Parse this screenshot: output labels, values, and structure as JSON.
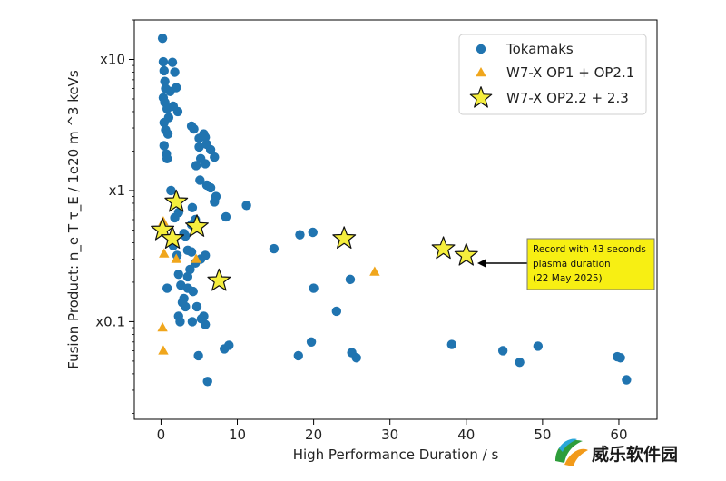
{
  "chart_data": {
    "type": "scatter",
    "title": "",
    "xlabel": "High Performance Duration / s",
    "ylabel": "Fusion Product:  n_e T τ_E /  1e20 m ^3 keVs",
    "xlim": [
      -3.5,
      65
    ],
    "ylim": [
      0.018,
      20
    ],
    "yscale": "log",
    "grid": false,
    "legend_position": "top-right",
    "x_ticks": [
      0,
      10,
      20,
      30,
      40,
      50,
      60
    ],
    "y_ticks": [
      {
        "value": 10,
        "label": "x10"
      },
      {
        "value": 1,
        "label": "x1"
      },
      {
        "value": 0.1,
        "label": "x0.1"
      }
    ],
    "series": [
      {
        "name": "Tokamaks",
        "marker": "circle",
        "color": "#2074b0",
        "points": [
          [
            0.2,
            14.5
          ],
          [
            0.3,
            9.6
          ],
          [
            0.4,
            8.2
          ],
          [
            0.5,
            6.8
          ],
          [
            0.6,
            6.0
          ],
          [
            0.3,
            5.1
          ],
          [
            0.5,
            4.7
          ],
          [
            0.8,
            4.2
          ],
          [
            1.0,
            3.6
          ],
          [
            0.4,
            3.3
          ],
          [
            0.6,
            2.9
          ],
          [
            0.9,
            2.7
          ],
          [
            1.5,
            9.5
          ],
          [
            1.8,
            8.0
          ],
          [
            2.0,
            6.1
          ],
          [
            1.2,
            5.7
          ],
          [
            1.6,
            4.4
          ],
          [
            2.2,
            4.0
          ],
          [
            0.4,
            2.2
          ],
          [
            0.7,
            1.9
          ],
          [
            0.8,
            1.75
          ],
          [
            1.3,
            1.0
          ],
          [
            1.8,
            0.62
          ],
          [
            2.3,
            0.68
          ],
          [
            1.6,
            0.38
          ],
          [
            2.1,
            0.32
          ],
          [
            0.8,
            0.18
          ],
          [
            2.3,
            0.23
          ],
          [
            2.6,
            0.19
          ],
          [
            3.0,
            0.15
          ],
          [
            3.5,
            0.22
          ],
          [
            2.3,
            0.11
          ],
          [
            2.5,
            0.1
          ],
          [
            2.8,
            0.14
          ],
          [
            3.2,
            0.13
          ],
          [
            4.0,
            3.1
          ],
          [
            4.3,
            2.95
          ],
          [
            5.0,
            2.5
          ],
          [
            5.6,
            2.7
          ],
          [
            5.8,
            2.55
          ],
          [
            6.0,
            2.25
          ],
          [
            5.0,
            2.15
          ],
          [
            4.6,
            1.55
          ],
          [
            5.2,
            1.75
          ],
          [
            5.8,
            1.6
          ],
          [
            6.5,
            2.05
          ],
          [
            7.0,
            1.8
          ],
          [
            5.1,
            1.2
          ],
          [
            6.0,
            1.1
          ],
          [
            6.5,
            1.05
          ],
          [
            7.2,
            0.9
          ],
          [
            7.0,
            0.82
          ],
          [
            4.1,
            0.74
          ],
          [
            8.5,
            0.63
          ],
          [
            11.2,
            0.77
          ],
          [
            4.0,
            0.55
          ],
          [
            4.5,
            0.6
          ],
          [
            5.2,
            0.3
          ],
          [
            5.8,
            0.32
          ],
          [
            3.2,
            0.45
          ],
          [
            3.0,
            0.47
          ],
          [
            3.5,
            0.35
          ],
          [
            4.0,
            0.34
          ],
          [
            3.8,
            0.25
          ],
          [
            4.5,
            0.28
          ],
          [
            3.5,
            0.18
          ],
          [
            4.2,
            0.17
          ],
          [
            4.7,
            0.13
          ],
          [
            5.6,
            0.11
          ],
          [
            5.3,
            0.105
          ],
          [
            4.1,
            0.1
          ],
          [
            5.8,
            0.095
          ],
          [
            4.9,
            0.055
          ],
          [
            6.1,
            0.035
          ],
          [
            8.3,
            0.062
          ],
          [
            8.9,
            0.066
          ],
          [
            14.8,
            0.36
          ],
          [
            18.2,
            0.46
          ],
          [
            19.9,
            0.48
          ],
          [
            20.0,
            0.18
          ],
          [
            23.0,
            0.12
          ],
          [
            24.8,
            0.21
          ],
          [
            18.0,
            0.055
          ],
          [
            19.7,
            0.07
          ],
          [
            25.0,
            0.058
          ],
          [
            25.6,
            0.053
          ],
          [
            38.1,
            0.067
          ],
          [
            44.8,
            0.06
          ],
          [
            47.0,
            0.049
          ],
          [
            49.4,
            0.065
          ],
          [
            59.8,
            0.054
          ],
          [
            60.2,
            0.053
          ],
          [
            61.0,
            0.036
          ]
        ]
      },
      {
        "name": "W7-X OP1 + OP2.1",
        "marker": "triangle",
        "color": "#f0a61c",
        "points": [
          [
            0.3,
            0.58
          ],
          [
            0.4,
            0.33
          ],
          [
            0.2,
            0.09
          ],
          [
            0.3,
            0.06
          ],
          [
            2.0,
            0.3
          ],
          [
            4.6,
            0.3
          ],
          [
            28.0,
            0.24
          ]
        ]
      },
      {
        "name": "W7-X OP2.2 + 2.3",
        "marker": "star",
        "color": "#f5ee3d",
        "points": [
          [
            0.2,
            0.5
          ],
          [
            1.5,
            0.43
          ],
          [
            2.0,
            0.82
          ],
          [
            4.7,
            0.53
          ],
          [
            7.6,
            0.205
          ],
          [
            24.0,
            0.43
          ],
          [
            37.0,
            0.36
          ],
          [
            40.0,
            0.32
          ]
        ]
      }
    ],
    "annotation": {
      "lines": [
        "Record with 43 seconds",
        "plasma duration",
        "(22 May 2025)"
      ],
      "points_to": [
        42,
        0.32
      ],
      "box_color": "#f7ef13"
    }
  },
  "watermark": {
    "text": "威乐软件园"
  }
}
